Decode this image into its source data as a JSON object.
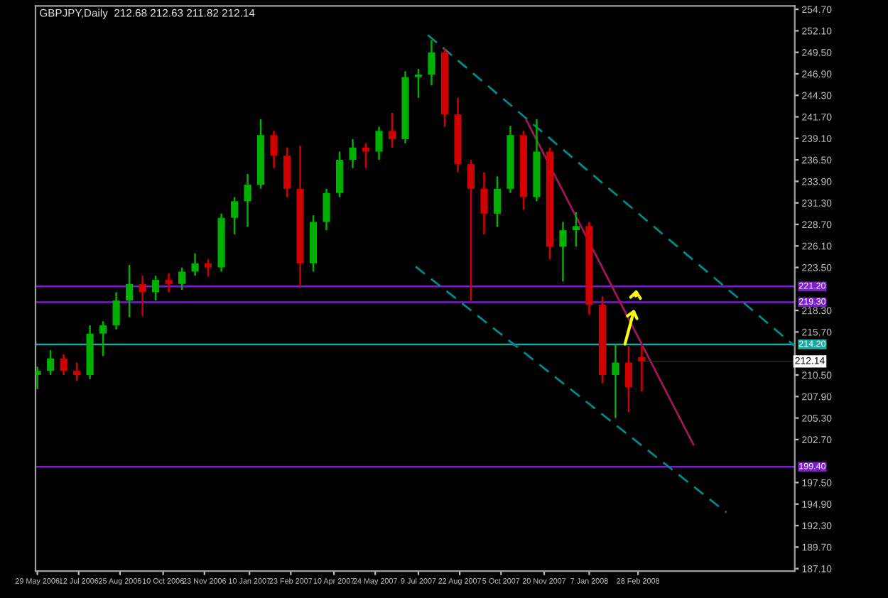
{
  "chart_data": {
    "type": "candlestick",
    "title": "GBPJPY,Daily  212.68 212.63 211.82 212.14",
    "x": [
      "2006-05-29",
      "2006-06-12",
      "2006-06-26",
      "2006-07-10",
      "2006-07-24",
      "2006-08-07",
      "2006-08-21",
      "2006-09-04",
      "2006-09-18",
      "2006-10-02",
      "2006-10-16",
      "2006-10-30",
      "2006-11-13",
      "2006-11-27",
      "2006-12-11",
      "2006-12-25",
      "2007-01-08",
      "2007-01-22",
      "2007-02-05",
      "2007-02-19",
      "2007-03-05",
      "2007-03-19",
      "2007-04-02",
      "2007-04-16",
      "2007-04-30",
      "2007-05-14",
      "2007-05-28",
      "2007-06-11",
      "2007-06-25",
      "2007-07-09",
      "2007-07-23",
      "2007-08-06",
      "2007-08-20",
      "2007-09-03",
      "2007-09-17",
      "2007-10-01",
      "2007-10-15",
      "2007-10-29",
      "2007-11-12",
      "2007-11-26",
      "2007-12-10",
      "2007-12-24",
      "2008-01-07",
      "2008-01-21",
      "2008-02-04",
      "2008-02-18",
      "2008-03-03"
    ],
    "ohlc": [
      [
        210.5,
        211.5,
        208.8,
        211
      ],
      [
        211,
        213.5,
        210.5,
        212.5
      ],
      [
        212.5,
        213,
        210.5,
        211
      ],
      [
        211,
        212,
        209.8,
        210.5
      ],
      [
        210.5,
        216.5,
        210,
        215.5
      ],
      [
        215.5,
        217,
        212.8,
        216.5
      ],
      [
        216.5,
        220.5,
        216,
        219.5
      ],
      [
        219.5,
        223.8,
        217.5,
        221.5
      ],
      [
        221.5,
        222.5,
        217.6,
        220.5
      ],
      [
        220.5,
        222.5,
        219.5,
        222
      ],
      [
        222,
        222.8,
        220.5,
        221.5
      ],
      [
        221.5,
        223.5,
        220.8,
        223
      ],
      [
        223,
        225.2,
        222.5,
        224
      ],
      [
        224,
        224.5,
        222.4,
        223.5
      ],
      [
        223.5,
        230,
        223,
        229.5
      ],
      [
        229.5,
        232,
        227.5,
        231.5
      ],
      [
        231.5,
        234.8,
        228.4,
        233.5
      ],
      [
        233.5,
        241.4,
        233,
        239.5
      ],
      [
        239.5,
        240,
        235.5,
        237
      ],
      [
        237,
        238,
        232,
        233
      ],
      [
        233,
        238.2,
        221.1,
        224
      ],
      [
        224,
        229.8,
        223,
        229
      ],
      [
        229,
        233,
        228,
        232.5
      ],
      [
        232.5,
        237.5,
        232,
        236.5
      ],
      [
        236.5,
        239,
        235.5,
        238
      ],
      [
        238,
        238.5,
        235.5,
        237.5
      ],
      [
        237.5,
        240.5,
        236.5,
        240
      ],
      [
        240,
        242.2,
        238,
        239
      ],
      [
        239,
        247.2,
        238.5,
        246.5
      ],
      [
        246.5,
        247.5,
        244,
        246.8
      ],
      [
        246.8,
        251,
        245.5,
        249.5
      ],
      [
        249.5,
        250,
        240.5,
        242
      ],
      [
        242,
        244,
        235,
        236
      ],
      [
        236,
        236.5,
        219.5,
        233
      ],
      [
        233,
        235,
        227.5,
        230
      ],
      [
        230,
        234.5,
        228.4,
        233
      ],
      [
        233,
        240.6,
        232.5,
        239.5
      ],
      [
        239.5,
        240,
        230.5,
        232
      ],
      [
        232,
        241.4,
        231.5,
        237.5
      ],
      [
        237.5,
        238,
        224.5,
        226
      ],
      [
        226,
        229,
        221.8,
        228
      ],
      [
        228,
        230.2,
        226,
        228.5
      ],
      [
        228.5,
        229,
        217.8,
        219
      ],
      [
        219,
        220,
        209.5,
        210.5
      ],
      [
        210.5,
        214.2,
        205.3,
        212
      ],
      [
        212,
        214,
        206,
        209
      ],
      [
        212.68,
        214,
        208.5,
        212.14
      ]
    ],
    "series": [
      {
        "type": "line",
        "color": "#008b8b",
        "line_style": "dashed",
        "x": [
          "2007-07-19",
          "2008-08-13"
        ],
        "values": [
          251.6,
          214.0
        ]
      },
      {
        "type": "line",
        "color": "#008b8b",
        "line_style": "dashed",
        "x": [
          "2007-07-06",
          "2008-06-01"
        ],
        "values": [
          223.6,
          193.9
        ]
      },
      {
        "type": "line",
        "color": "#a0185a",
        "line_style": "solid",
        "x": [
          "2007-11-01",
          "2008-04-27"
        ],
        "values": [
          241.3,
          202.1
        ]
      }
    ],
    "ref_lines": [
      {
        "axis": "y",
        "value": 221.2,
        "label": "221.20",
        "color": "#7a1fc8",
        "line_style": "solid"
      },
      {
        "axis": "y",
        "value": 219.3,
        "label": "219.30",
        "color": "#7a1fc8",
        "line_style": "solid"
      },
      {
        "axis": "y",
        "value": 214.2,
        "label": "214.20",
        "color": "#1fa8a0",
        "line_style": "solid"
      },
      {
        "axis": "y",
        "value": 199.4,
        "label": "199.40",
        "color": "#7a1fc8",
        "line_style": "solid"
      }
    ],
    "annotations": [
      {
        "text": "212.14",
        "x": "2008-03-03",
        "y": 212.14
      }
    ],
    "xlim": [
      "2006-05-27",
      "2008-08-13"
    ],
    "xticks": [
      {
        "value": "2006-05-29",
        "label": "29 May 2006"
      },
      {
        "value": "2006-07-12",
        "label": "12 Jul 2006"
      },
      {
        "value": "2006-08-25",
        "label": "25 Aug 2006"
      },
      {
        "value": "2006-10-10",
        "label": "10 Oct 2006"
      },
      {
        "value": "2006-11-23",
        "label": "23 Nov 2006"
      },
      {
        "value": "2007-01-10",
        "label": "10 Jan 2007"
      },
      {
        "value": "2007-02-23",
        "label": "23 Feb 2007"
      },
      {
        "value": "2007-04-10",
        "label": "10 Apr 2007"
      },
      {
        "value": "2007-05-24",
        "label": "24 May 2007"
      },
      {
        "value": "2007-07-09",
        "label": "9 Jul 2007"
      },
      {
        "value": "2007-08-22",
        "label": "22 Aug 2007"
      },
      {
        "value": "2007-10-05",
        "label": "5 Oct 2007"
      },
      {
        "value": "2007-11-20",
        "label": "20 Nov 2007"
      },
      {
        "value": "2008-01-07",
        "label": "7 Jan 2008"
      },
      {
        "value": "2008-02-28",
        "label": "28 Feb 2008"
      }
    ],
    "ylim": [
      186.8,
      255.1
    ],
    "yticks": [
      {
        "value": 254.7,
        "label": "254.70"
      },
      {
        "value": 252.1,
        "label": "252.10"
      },
      {
        "value": 249.5,
        "label": "249.50"
      },
      {
        "value": 246.9,
        "label": "246.90"
      },
      {
        "value": 244.3,
        "label": "244.30"
      },
      {
        "value": 241.7,
        "label": "241.70"
      },
      {
        "value": 239.1,
        "label": "239.10"
      },
      {
        "value": 236.5,
        "label": "236.50"
      },
      {
        "value": 233.9,
        "label": "233.90"
      },
      {
        "value": 231.3,
        "label": "231.30"
      },
      {
        "value": 228.7,
        "label": "228.70"
      },
      {
        "value": 226.1,
        "label": "226.10"
      },
      {
        "value": 223.5,
        "label": "223.50"
      },
      {
        "value": 218.3,
        "label": "218.30"
      },
      {
        "value": 215.7,
        "label": "215.70"
      },
      {
        "value": 210.5,
        "label": "210.50"
      },
      {
        "value": 207.9,
        "label": "207.90"
      },
      {
        "value": 205.3,
        "label": "205.30"
      },
      {
        "value": 202.7,
        "label": "202.70"
      },
      {
        "value": 197.5,
        "label": "197.50"
      },
      {
        "value": 194.9,
        "label": "194.90"
      },
      {
        "value": 192.3,
        "label": "192.30"
      },
      {
        "value": 189.7,
        "label": "189.70"
      },
      {
        "value": 187.1,
        "label": "187.10"
      }
    ],
    "grid": false,
    "legend": false
  }
}
